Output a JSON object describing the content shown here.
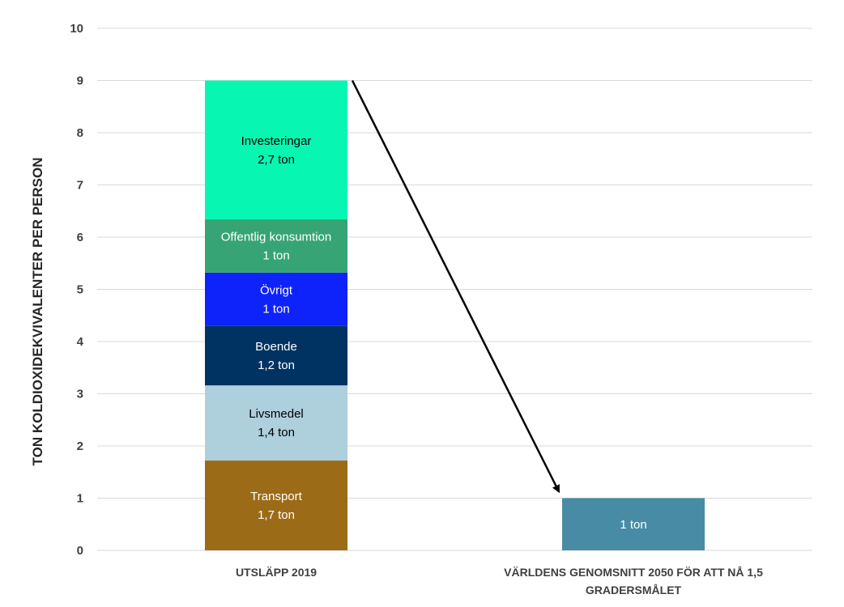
{
  "chart_data": {
    "type": "bar",
    "stacked": true,
    "ylabel": "TON KOLDIOXIDEKVIVALENTER PER PERSON",
    "ylim": [
      0,
      10
    ],
    "y_ticks": [
      "0",
      "1",
      "2",
      "3",
      "4",
      "5",
      "6",
      "7",
      "8",
      "9",
      "10"
    ],
    "grid": true,
    "categories": [
      "UTSLÄPP 2019",
      "VÄRLDENS GENOMSNITT 2050 FÖR ATT NÅ 1,5 GRADERSMÅLET"
    ],
    "series": [
      {
        "name": "Transport",
        "value_label": "1,7 ton",
        "color": "#9C6B17",
        "text_color": "#ffffff",
        "values": [
          1.72,
          0
        ]
      },
      {
        "name": "Livsmedel",
        "value_label": "1,4 ton",
        "color": "#AECFDC",
        "text_color": "#000000",
        "values": [
          1.44,
          0
        ]
      },
      {
        "name": "Boende",
        "value_label": "1,2 ton",
        "color": "#003262",
        "text_color": "#ffffff",
        "values": [
          1.14,
          0
        ]
      },
      {
        "name": "Övrigt",
        "value_label": "1 ton",
        "color": "#0E22FA",
        "text_color": "#ffffff",
        "values": [
          1.02,
          0
        ]
      },
      {
        "name": "Offentlig konsumtion",
        "value_label": "1 ton",
        "color": "#36A474",
        "text_color": "#ffffff",
        "values": [
          1.02,
          0
        ]
      },
      {
        "name": "Investeringar",
        "value_label": "2,7 ton",
        "color": "#07F7B2",
        "text_color": "#000000",
        "values": [
          2.66,
          0
        ]
      },
      {
        "name": "",
        "value_label": "1 ton",
        "color": "#478CA4",
        "text_color": "#ffffff",
        "values": [
          0,
          1.0
        ]
      }
    ],
    "annotations": [
      {
        "type": "arrow",
        "from": {
          "category": 0,
          "y": 9
        },
        "to": {
          "category": 1,
          "y": 1
        }
      }
    ]
  }
}
